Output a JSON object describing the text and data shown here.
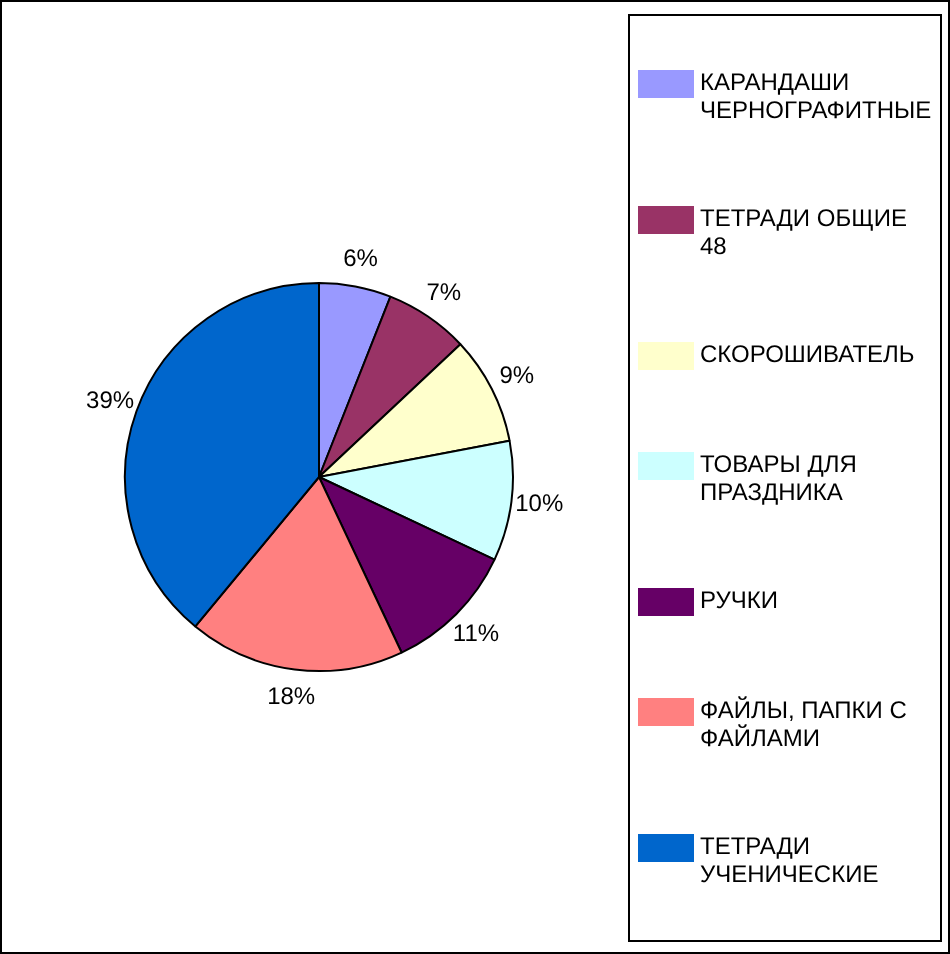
{
  "chart_data": {
    "type": "pie",
    "categories": [
      "КАРАНДАШИ ЧЕРНОГРАФИТНЫЕ",
      "ТЕТРАДИ ОБЩИЕ 48",
      "СКОРОШИВАТЕЛЬ",
      "ТОВАРЫ ДЛЯ ПРАЗДНИКА",
      "РУЧКИ",
      "ФАЙЛЫ, ПАПКИ С ФАЙЛАМИ",
      "ТЕТРАДИ УЧЕНИЧЕСКИЕ"
    ],
    "values": [
      6,
      7,
      9,
      10,
      11,
      18,
      39
    ],
    "colors": [
      "#9999ff",
      "#993366",
      "#ffffcc",
      "#ccffff",
      "#660066",
      "#ff8080",
      "#0066cc"
    ],
    "value_labels": [
      "6%",
      "7%",
      "9%",
      "10%",
      "11%",
      "18%",
      "39%"
    ],
    "legend": "right"
  }
}
